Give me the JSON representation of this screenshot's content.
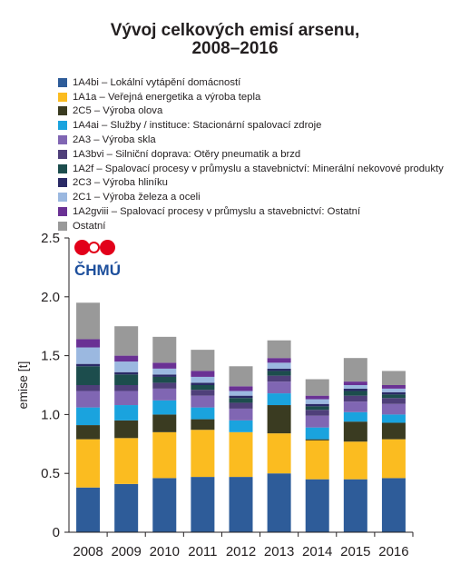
{
  "title_line1": "Vývoj celkových emisí arsenu,",
  "title_line2": "2008–2016",
  "logo_text": "ČHMÚ",
  "colors": {
    "1A4bi": "#2e5c99",
    "1A1a": "#fbbc20",
    "2C5": "#3a3b21",
    "1A4ai": "#1aa3de",
    "2A3": "#8066b3",
    "1A3bvi": "#4f3f7a",
    "1A2f": "#1c4d4d",
    "2C3": "#2a2a66",
    "2C1": "#9bb8e0",
    "1A2gviii": "#6a3194",
    "Ostatni": "#999999"
  },
  "chart_data": {
    "type": "bar",
    "stacked": true,
    "title": "Vývoj celkových emisí arsenu, 2008–2016",
    "xlabel": "",
    "ylabel": "emise [t]",
    "ylim": [
      0,
      2.5
    ],
    "yticks": [
      "0",
      "0.5",
      "1.0",
      "1.5",
      "2.0",
      "2.5"
    ],
    "ytick_values": [
      0,
      0.5,
      1.0,
      1.5,
      2.0,
      2.5
    ],
    "legend_position": "top",
    "grid": false,
    "categories": [
      "2008",
      "2009",
      "2010",
      "2011",
      "2012",
      "2013",
      "2014",
      "2015",
      "2016"
    ],
    "series": [
      {
        "key": "1A4bi",
        "name": "1A4bi – Lokální vytápění domácností",
        "values": [
          0.38,
          0.41,
          0.46,
          0.47,
          0.47,
          0.5,
          0.45,
          0.45,
          0.46
        ]
      },
      {
        "key": "1A1a",
        "name": "1A1a – Veřejná energetika a výroba tepla",
        "values": [
          0.41,
          0.39,
          0.39,
          0.4,
          0.38,
          0.34,
          0.33,
          0.32,
          0.33
        ]
      },
      {
        "key": "2C5",
        "name": "2C5 – Výroba olova",
        "values": [
          0.12,
          0.15,
          0.15,
          0.09,
          0.0,
          0.24,
          0.01,
          0.17,
          0.14
        ]
      },
      {
        "key": "1A4ai",
        "name": "1A4ai – Služby / instituce: Stacionární spalovací zdroje",
        "values": [
          0.15,
          0.13,
          0.12,
          0.1,
          0.1,
          0.1,
          0.1,
          0.08,
          0.07
        ]
      },
      {
        "key": "2A3",
        "name": "2A3 – Výroba skla",
        "values": [
          0.14,
          0.12,
          0.1,
          0.1,
          0.1,
          0.1,
          0.1,
          0.09,
          0.09
        ]
      },
      {
        "key": "1A3bvi",
        "name": "1A3bvi – Silniční doprava: Otěry pneumatik a brzd",
        "values": [
          0.05,
          0.05,
          0.05,
          0.05,
          0.05,
          0.05,
          0.05,
          0.05,
          0.05
        ]
      },
      {
        "key": "1A2f",
        "name": "1A2f – Spalovací procesy v průmyslu a stavebnictví: Minerální nekovové produkty",
        "values": [
          0.16,
          0.09,
          0.05,
          0.04,
          0.04,
          0.04,
          0.03,
          0.04,
          0.03
        ]
      },
      {
        "key": "2C3",
        "name": "2C3 – Výroba hliníku",
        "values": [
          0.02,
          0.02,
          0.02,
          0.02,
          0.02,
          0.02,
          0.02,
          0.02,
          0.02
        ]
      },
      {
        "key": "2C1",
        "name": "2C1 – Výroba železa a oceli",
        "values": [
          0.14,
          0.09,
          0.05,
          0.05,
          0.04,
          0.05,
          0.04,
          0.03,
          0.03
        ]
      },
      {
        "key": "1A2gviii",
        "name": "1A2gviii – Spalovací procesy v průmyslu a stavebnictví: Ostatní",
        "values": [
          0.07,
          0.05,
          0.05,
          0.05,
          0.04,
          0.04,
          0.03,
          0.03,
          0.03
        ]
      },
      {
        "key": "Ostatni",
        "name": "Ostatní",
        "values": [
          0.31,
          0.25,
          0.22,
          0.18,
          0.17,
          0.15,
          0.14,
          0.2,
          0.12
        ]
      }
    ]
  }
}
